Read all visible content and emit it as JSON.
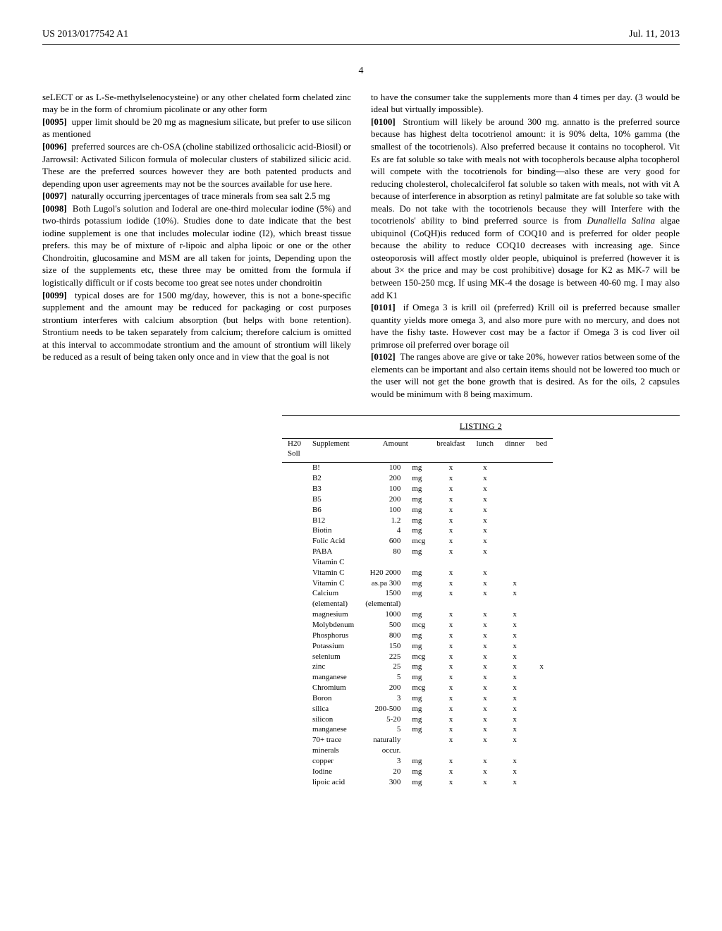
{
  "header": {
    "pubnum": "US 2013/0177542 A1",
    "date": "Jul. 11, 2013"
  },
  "pagenum": "4",
  "left": {
    "p94_cont": "seLECT or as L-Se-methylselenocysteine) or any other chelated form chelated zinc may be in the form of chromium picolinate or any other form",
    "p95_num": "[0095]",
    "p95": "upper limit should be 20 mg as magnesium silicate, but prefer to use silicon as mentioned",
    "p96_num": "[0096]",
    "p96": "preferred sources are ch-OSA (choline stabilized orthosalicic acid-Biosil) or Jarrowsil: Activated Silicon formula of molecular clusters of stabilized silicic acid. These are the preferred sources however they are both patented products and depending upon user agreements may not be the sources available for use here.",
    "p97_num": "[0097]",
    "p97": "naturally occurring jpercentages of trace minerals from sea salt 2.5 mg",
    "p98_num": "[0098]",
    "p98": "Both Lugol's solution and Ioderal are one-third molecular iodine (5%) and two-thirds potassium iodide (10%). Studies done to date indicate that the best iodine supplement is one that includes molecular iodine (I2), which breast tissue prefers. this may be of mixture of r-lipoic and alpha lipoic or one or the other Chondroitin, glucosamine and MSM are all taken for joints, Depending upon the size of the supplements etc, these three may be omitted from the formula if logistically difficult or if costs become too great see notes under chondroitin",
    "p99_num": "[0099]",
    "p99": "typical doses are for 1500 mg/day, however, this is not a bone-specific supplement and the amount may be reduced for packaging or cost purposes strontium interferes with calcium absorption (but helps with bone retention). Strontium needs to be taken separately from calcium; therefore calcium is omitted at this interval to accommodate strontium and the amount of strontium will likely be reduced as a result of being taken only once and in view that the goal is not"
  },
  "right": {
    "p99_cont": "to have the consumer take the supplements more than 4 times per day. (3 would be ideal but virtually impossible).",
    "p100_num": "[0100]",
    "p100a": "Strontium will likely be around 300 mg. annatto is the preferred source because has highest delta tocotrienol amount: it is 90% delta, 10% gamma (the smallest of the tocotrienols). Also preferred because it contains no tocopherol. Vit Es are fat soluble so take with meals not with tocopherols because alpha tocopherol will compete with the tocotrienols for binding—also these are very good for reducing cholesterol, cholecalciferol fat soluble so taken with meals, not with vit A because of interference in absorption as retinyl palmitate are fat soluble so take with meals. Do not take with the tocotrienols because they will Interfere with the tocotrienols' ability to bind preferred source is from ",
    "p100_ital": "Dunaliella Salina",
    "p100b": " algae ubiquinol (CoQH)is reduced form of COQ10 and is preferred for older people because the ability to reduce COQ10 decreases with increasing age. Since osteoporosis will affect mostly older people, ubiquinol is preferred (however it is about 3× the price and may be cost prohibitive) dosage for K2 as MK-7 will be between 150-250 mcg. If using MK-4 the dosage is between 40-60 mg. I may also add K1",
    "p101_num": "[0101]",
    "p101": "if Omega 3 is krill oil (preferred) Krill oil is preferred because smaller quantity yields more omega 3, and also more pure with no mercury, and does not have the fishy taste. However cost may be a factor if Omega 3 is cod liver oil primrose oil preferred over borage oil",
    "p102_num": "[0102]",
    "p102": "The ranges above are give or take 20%, however ratios between some of the elements can be important and also certain items should not be lowered too much or the user will not get the bone growth that is desired. As for the oils, 2 capsules would be minimum with 8 being maximum."
  },
  "listing": {
    "title": "LISTING 2",
    "h20_header_a": "H20",
    "h20_header_b": "Soll",
    "columns": [
      "Supplement",
      "Amount",
      "breakfast",
      "lunch",
      "dinner",
      "bed"
    ],
    "rows": [
      {
        "sup": "B!",
        "amt": "100",
        "u": "mg",
        "b": "x",
        "l": "x",
        "d": "",
        "bed": ""
      },
      {
        "sup": "B2",
        "amt": "200",
        "u": "mg",
        "b": "x",
        "l": "x",
        "d": "",
        "bed": ""
      },
      {
        "sup": "B3",
        "amt": "100",
        "u": "mg",
        "b": "x",
        "l": "x",
        "d": "",
        "bed": ""
      },
      {
        "sup": "B5",
        "amt": "200",
        "u": "mg",
        "b": "x",
        "l": "x",
        "d": "",
        "bed": ""
      },
      {
        "sup": "B6",
        "amt": "100",
        "u": "mg",
        "b": "x",
        "l": "x",
        "d": "",
        "bed": ""
      },
      {
        "sup": "B12",
        "amt": "1.2",
        "u": "mg",
        "b": "x",
        "l": "x",
        "d": "",
        "bed": ""
      },
      {
        "sup": "Biotin",
        "amt": "4",
        "u": "mg",
        "b": "x",
        "l": "x",
        "d": "",
        "bed": ""
      },
      {
        "sup": "Folic Acid",
        "amt": "600",
        "u": "mcg",
        "b": "x",
        "l": "x",
        "d": "",
        "bed": ""
      },
      {
        "sup": "PABA",
        "amt": "80",
        "u": "mg",
        "b": "x",
        "l": "x",
        "d": "",
        "bed": ""
      },
      {
        "sup": "Vitamin C",
        "amt": "",
        "u": "",
        "b": "",
        "l": "",
        "d": "",
        "bed": ""
      },
      {
        "sup": "Vitamin C",
        "amt": "H20 2000",
        "u": "mg",
        "b": "x",
        "l": "x",
        "d": "",
        "bed": ""
      },
      {
        "sup": "Vitamin C",
        "amt": "as.pa 300",
        "u": "mg",
        "b": "x",
        "l": "x",
        "d": "x",
        "bed": ""
      },
      {
        "sup": "Calcium",
        "amt": "1500",
        "u": "mg",
        "b": "x",
        "l": "x",
        "d": "x",
        "bed": ""
      },
      {
        "sup": "(elemental)",
        "amt": "(elemental)",
        "u": "",
        "b": "",
        "l": "",
        "d": "",
        "bed": ""
      },
      {
        "sup": "magnesium",
        "amt": "1000",
        "u": "mg",
        "b": "x",
        "l": "x",
        "d": "x",
        "bed": ""
      },
      {
        "sup": "Molybdenum",
        "amt": "500",
        "u": "mcg",
        "b": "x",
        "l": "x",
        "d": "x",
        "bed": ""
      },
      {
        "sup": "Phosphorus",
        "amt": "800",
        "u": "mg",
        "b": "x",
        "l": "x",
        "d": "x",
        "bed": ""
      },
      {
        "sup": "Potassium",
        "amt": "150",
        "u": "mg",
        "b": "x",
        "l": "x",
        "d": "x",
        "bed": ""
      },
      {
        "sup": "selenium",
        "amt": "225",
        "u": "mcg",
        "b": "x",
        "l": "x",
        "d": "x",
        "bed": ""
      },
      {
        "sup": "zinc",
        "amt": "25",
        "u": "mg",
        "b": "x",
        "l": "x",
        "d": "x",
        "bed": "x"
      },
      {
        "sup": "manganese",
        "amt": "5",
        "u": "mg",
        "b": "x",
        "l": "x",
        "d": "x",
        "bed": ""
      },
      {
        "sup": "Chromium",
        "amt": "200",
        "u": "mcg",
        "b": "x",
        "l": "x",
        "d": "x",
        "bed": ""
      },
      {
        "sup": "Boron",
        "amt": "3",
        "u": "mg",
        "b": "x",
        "l": "x",
        "d": "x",
        "bed": ""
      },
      {
        "sup": "silica",
        "amt": "200-500",
        "u": "mg",
        "b": "x",
        "l": "x",
        "d": "x",
        "bed": ""
      },
      {
        "sup": "silicon",
        "amt": "5-20",
        "u": "mg",
        "b": "x",
        "l": "x",
        "d": "x",
        "bed": ""
      },
      {
        "sup": "manganese",
        "amt": "5",
        "u": "mg",
        "b": "x",
        "l": "x",
        "d": "x",
        "bed": ""
      },
      {
        "sup": "70+ trace",
        "amt": "naturally",
        "u": "",
        "b": "x",
        "l": "x",
        "d": "x",
        "bed": ""
      },
      {
        "sup": "minerals",
        "amt": "occur.",
        "u": "",
        "b": "",
        "l": "",
        "d": "",
        "bed": ""
      },
      {
        "sup": "copper",
        "amt": "3",
        "u": "mg",
        "b": "x",
        "l": "x",
        "d": "x",
        "bed": ""
      },
      {
        "sup": "Iodine",
        "amt": "20",
        "u": "mg",
        "b": "x",
        "l": "x",
        "d": "x",
        "bed": ""
      },
      {
        "sup": "lipoic acid",
        "amt": "300",
        "u": "mg",
        "b": "x",
        "l": "x",
        "d": "x",
        "bed": ""
      }
    ]
  }
}
